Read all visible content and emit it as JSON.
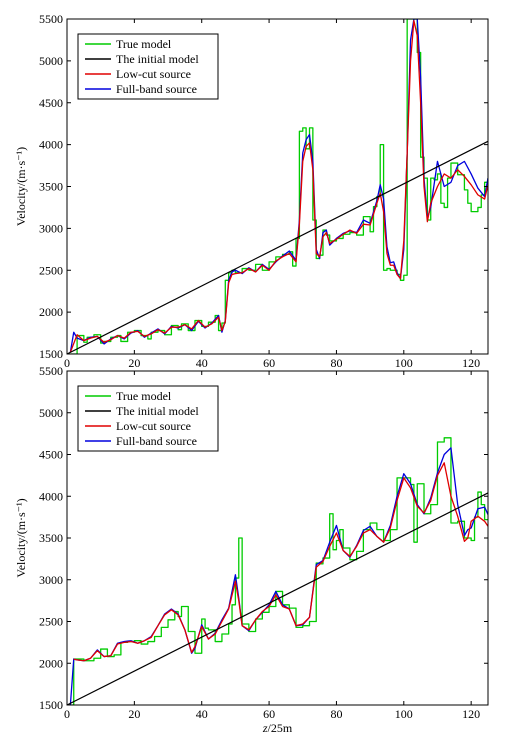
{
  "chart_data": [
    {
      "type": "line",
      "xlabel": "",
      "ylabel": "Velocity/(m·s⁻¹)",
      "xlim": [
        0,
        125
      ],
      "ylim": [
        1500,
        5500
      ],
      "xticks": [
        "0",
        "20",
        "40",
        "60",
        "80",
        "100",
        "120"
      ],
      "yticks": [
        "1500",
        "2000",
        "2500",
        "3000",
        "3500",
        "4000",
        "4500",
        "5000",
        "5500"
      ],
      "legend_position": "top-left",
      "grid": false,
      "series": [
        {
          "name": "True model",
          "color": "#00cc00",
          "step": true,
          "x": [
            1,
            3,
            5,
            6,
            8,
            10,
            11,
            13,
            15,
            16,
            18,
            20,
            22,
            24,
            25,
            27,
            29,
            31,
            33,
            34,
            36,
            38,
            40,
            42,
            44,
            45,
            46,
            47,
            48,
            49,
            50,
            52,
            54,
            56,
            58,
            60,
            62,
            64,
            66,
            67,
            68,
            69,
            70,
            71,
            72,
            73,
            74,
            75,
            76,
            77,
            78,
            80,
            82,
            84,
            86,
            88,
            90,
            91,
            92,
            93,
            94,
            95,
            96,
            98,
            99,
            100,
            101,
            102,
            103,
            104,
            105,
            106,
            107,
            108,
            109,
            110,
            111,
            112,
            113,
            114,
            116,
            118,
            119,
            120,
            122,
            123,
            124,
            125
          ],
          "y": [
            1500,
            1720,
            1640,
            1700,
            1730,
            1630,
            1650,
            1700,
            1720,
            1650,
            1760,
            1780,
            1720,
            1680,
            1760,
            1780,
            1730,
            1840,
            1790,
            1860,
            1780,
            1900,
            1830,
            1880,
            1960,
            1780,
            1870,
            2380,
            2470,
            2500,
            2470,
            2520,
            2500,
            2570,
            2500,
            2600,
            2660,
            2690,
            2720,
            2550,
            2880,
            4160,
            4200,
            3950,
            4200,
            3100,
            2640,
            2680,
            2980,
            2920,
            2850,
            2880,
            2930,
            2950,
            2920,
            3140,
            2960,
            3260,
            3380,
            4000,
            2500,
            2520,
            2500,
            2450,
            2380,
            2440,
            5500,
            5500,
            5500,
            5100,
            3850,
            3600,
            3100,
            3600,
            3580,
            3650,
            3300,
            3250,
            3600,
            3780,
            3640,
            3460,
            3300,
            3200,
            3250,
            3400,
            3550,
            3600
          ]
        },
        {
          "name": "The initial model",
          "color": "#000000",
          "x": [
            0,
            125
          ],
          "y": [
            1500,
            4040
          ]
        },
        {
          "name": "Low-cut source",
          "color": "#e00000",
          "x": [
            1,
            3,
            5,
            7,
            9,
            11,
            13,
            15,
            17,
            19,
            21,
            23,
            25,
            27,
            29,
            31,
            33,
            35,
            37,
            39,
            41,
            43,
            45,
            46,
            47,
            48,
            49,
            50,
            52,
            54,
            56,
            58,
            60,
            62,
            64,
            66,
            68,
            69,
            70,
            71,
            72,
            73,
            74,
            75,
            76,
            77,
            78,
            80,
            82,
            84,
            86,
            88,
            90,
            92,
            93,
            94,
            95,
            96,
            97,
            98,
            99,
            100,
            101,
            102,
            103,
            104,
            105,
            106,
            107,
            108,
            110,
            112,
            114,
            116,
            118,
            120,
            122,
            124,
            125
          ],
          "y": [
            1520,
            1730,
            1660,
            1690,
            1710,
            1640,
            1670,
            1720,
            1690,
            1760,
            1770,
            1710,
            1740,
            1790,
            1750,
            1820,
            1820,
            1850,
            1800,
            1900,
            1820,
            1860,
            1940,
            1780,
            1890,
            2350,
            2450,
            2460,
            2470,
            2520,
            2480,
            2560,
            2500,
            2610,
            2660,
            2700,
            2600,
            3050,
            3800,
            3980,
            4020,
            3700,
            2700,
            2660,
            2900,
            2950,
            2820,
            2870,
            2930,
            2980,
            2940,
            3050,
            3040,
            3300,
            3420,
            3200,
            2700,
            2560,
            2560,
            2450,
            2400,
            2850,
            3900,
            5000,
            5480,
            5300,
            4500,
            3500,
            3080,
            3300,
            3500,
            3650,
            3600,
            3700,
            3620,
            3520,
            3400,
            3350,
            3520
          ]
        },
        {
          "name": "Full-band source",
          "color": "#0000dd",
          "x": [
            1,
            2,
            3,
            5,
            7,
            9,
            11,
            13,
            15,
            17,
            19,
            21,
            23,
            25,
            27,
            29,
            31,
            33,
            35,
            37,
            39,
            41,
            43,
            45,
            46,
            47,
            48,
            49,
            50,
            52,
            54,
            56,
            58,
            60,
            62,
            64,
            66,
            68,
            69,
            70,
            71,
            72,
            73,
            74,
            75,
            76,
            77,
            78,
            80,
            82,
            84,
            86,
            88,
            90,
            92,
            93,
            94,
            95,
            96,
            97,
            98,
            99,
            100,
            101,
            102,
            103,
            104,
            105,
            106,
            107,
            108,
            110,
            112,
            114,
            116,
            118,
            120,
            122,
            124,
            125
          ],
          "y": [
            1520,
            1760,
            1690,
            1660,
            1700,
            1710,
            1620,
            1680,
            1720,
            1680,
            1750,
            1780,
            1700,
            1750,
            1800,
            1740,
            1830,
            1810,
            1850,
            1780,
            1890,
            1810,
            1870,
            1960,
            1760,
            1900,
            2380,
            2480,
            2500,
            2460,
            2530,
            2480,
            2570,
            2510,
            2600,
            2670,
            2730,
            2620,
            3100,
            3900,
            4060,
            4120,
            3800,
            2750,
            2640,
            2950,
            2980,
            2800,
            2880,
            2940,
            2970,
            2950,
            3100,
            3060,
            3330,
            3520,
            3350,
            2780,
            2590,
            2600,
            2470,
            2400,
            2750,
            3900,
            5250,
            5500,
            5500,
            4800,
            3600,
            3120,
            3250,
            3800,
            3500,
            3550,
            3750,
            3800,
            3650,
            3480,
            3380,
            3600
          ]
        }
      ]
    },
    {
      "type": "line",
      "xlabel": "z/25m",
      "ylabel": "Velocity/(m·s⁻¹)",
      "xlim": [
        0,
        125
      ],
      "ylim": [
        1500,
        5500
      ],
      "xticks": [
        "0",
        "20",
        "40",
        "60",
        "80",
        "100",
        "120"
      ],
      "yticks": [
        "1500",
        "2000",
        "2500",
        "3000",
        "3500",
        "4000",
        "4500",
        "5000",
        "5500"
      ],
      "legend_position": "top-left",
      "grid": false,
      "series": [
        {
          "name": "True model",
          "color": "#00cc00",
          "step": true,
          "x": [
            1,
            2,
            5,
            8,
            10,
            12,
            14,
            16,
            18,
            20,
            22,
            24,
            26,
            28,
            30,
            32,
            33,
            34,
            36,
            38,
            40,
            41,
            42,
            44,
            46,
            48,
            49,
            50,
            51,
            52,
            54,
            56,
            58,
            60,
            62,
            64,
            66,
            68,
            70,
            72,
            74,
            75,
            76,
            78,
            79,
            80,
            81,
            82,
            84,
            86,
            88,
            90,
            92,
            94,
            96,
            98,
            100,
            102,
            103,
            104,
            106,
            108,
            110,
            112,
            114,
            116,
            118,
            120,
            121,
            122,
            123,
            124,
            125
          ],
          "y": [
            1500,
            2050,
            2030,
            2060,
            2170,
            2080,
            2100,
            2250,
            2260,
            2270,
            2230,
            2260,
            2320,
            2430,
            2520,
            2620,
            2560,
            2680,
            2380,
            2120,
            2530,
            2420,
            2400,
            2260,
            2350,
            2470,
            2700,
            3020,
            3500,
            2470,
            2380,
            2530,
            2610,
            2680,
            2860,
            2700,
            2660,
            2430,
            2450,
            2500,
            3200,
            3190,
            3260,
            3790,
            3360,
            3470,
            3600,
            3380,
            3240,
            3340,
            3600,
            3680,
            3600,
            3470,
            3600,
            4220,
            4220,
            4140,
            3450,
            4150,
            3790,
            3900,
            4650,
            4700,
            3680,
            3700,
            3500,
            3470,
            3750,
            4050,
            3900,
            3720,
            3720
          ]
        },
        {
          "name": "The initial model",
          "color": "#000000",
          "x": [
            0,
            125
          ],
          "y": [
            1500,
            4040
          ]
        },
        {
          "name": "Low-cut source",
          "color": "#e00000",
          "x": [
            2,
            3,
            5,
            7,
            9,
            11,
            13,
            15,
            17,
            19,
            21,
            23,
            25,
            27,
            29,
            31,
            33,
            35,
            37,
            38,
            40,
            42,
            44,
            46,
            48,
            50,
            51,
            52,
            54,
            56,
            58,
            60,
            62,
            64,
            66,
            68,
            70,
            72,
            74,
            76,
            78,
            80,
            82,
            84,
            86,
            88,
            90,
            92,
            94,
            96,
            98,
            100,
            102,
            104,
            106,
            108,
            110,
            112,
            114,
            116,
            118,
            119,
            120,
            122,
            124,
            125
          ],
          "y": [
            2050,
            2040,
            2030,
            2060,
            2150,
            2080,
            2090,
            2230,
            2250,
            2260,
            2240,
            2270,
            2310,
            2450,
            2580,
            2640,
            2580,
            2400,
            2130,
            2200,
            2440,
            2290,
            2350,
            2500,
            2650,
            2980,
            2750,
            2450,
            2400,
            2520,
            2620,
            2680,
            2820,
            2680,
            2650,
            2450,
            2470,
            2550,
            3150,
            3220,
            3400,
            3560,
            3350,
            3280,
            3400,
            3560,
            3600,
            3520,
            3450,
            3620,
            3950,
            4220,
            4100,
            3880,
            3800,
            3950,
            4250,
            4400,
            4000,
            3760,
            3460,
            3500,
            3700,
            3760,
            3700,
            3640
          ]
        },
        {
          "name": "Full-band source",
          "color": "#0000dd",
          "x": [
            1,
            2,
            3,
            5,
            7,
            9,
            11,
            13,
            15,
            17,
            19,
            21,
            23,
            25,
            27,
            29,
            31,
            33,
            35,
            37,
            38,
            40,
            42,
            44,
            46,
            48,
            50,
            51,
            52,
            54,
            56,
            58,
            60,
            62,
            64,
            66,
            68,
            70,
            72,
            74,
            76,
            78,
            80,
            82,
            84,
            86,
            88,
            90,
            92,
            94,
            96,
            98,
            100,
            102,
            104,
            106,
            108,
            110,
            112,
            114,
            116,
            118,
            119,
            120,
            122,
            124,
            125
          ],
          "y": [
            1500,
            2050,
            2040,
            2030,
            2060,
            2160,
            2080,
            2090,
            2240,
            2260,
            2270,
            2240,
            2270,
            2320,
            2450,
            2590,
            2650,
            2590,
            2400,
            2120,
            2180,
            2460,
            2290,
            2360,
            2520,
            2660,
            3060,
            2780,
            2450,
            2390,
            2520,
            2610,
            2700,
            2860,
            2700,
            2650,
            2450,
            2460,
            2550,
            3180,
            3230,
            3450,
            3650,
            3350,
            3270,
            3410,
            3590,
            3640,
            3520,
            3450,
            3650,
            4000,
            4270,
            4150,
            3900,
            3790,
            3980,
            4280,
            4500,
            4580,
            3900,
            3530,
            3600,
            3620,
            3850,
            3870,
            3780
          ]
        }
      ]
    }
  ]
}
